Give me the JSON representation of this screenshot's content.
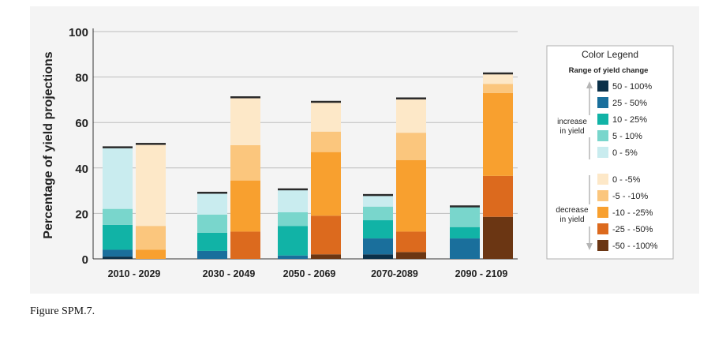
{
  "caption": "Figure SPM.7.",
  "chart_data": {
    "type": "bar",
    "stacked": true,
    "categories": [
      "2010 - 2029",
      "2030 - 2049",
      "2050 - 2069",
      "2070-2089",
      "2090 - 2109"
    ],
    "ylabel": "Percentage of yield projections",
    "xlabel": "",
    "ylim": [
      0,
      100
    ],
    "yticks": [
      "0",
      "20",
      "40",
      "60",
      "80",
      "100"
    ],
    "grid": true,
    "increase_series": [
      {
        "name": "50 - 100%",
        "color": "#0b3049",
        "values": [
          1,
          0,
          0,
          2,
          0
        ]
      },
      {
        "name": "25 - 50%",
        "color": "#1a6f9c",
        "values": [
          3,
          3.5,
          1.5,
          7,
          9
        ]
      },
      {
        "name": "10 - 25%",
        "color": "#11b3a6",
        "values": [
          11,
          8,
          13,
          8,
          5
        ]
      },
      {
        "name": "5 - 10%",
        "color": "#79d6cc",
        "values": [
          7,
          8,
          6,
          6,
          9
        ]
      },
      {
        "name": "0 - 5%",
        "color": "#c9ecef",
        "values": [
          27,
          9.5,
          10,
          5,
          0
        ]
      }
    ],
    "decrease_series": [
      {
        "name": "-50 - -100%",
        "color": "#6b3613",
        "values": [
          0,
          0,
          2,
          3,
          18.5
        ]
      },
      {
        "name": "-25 - -50%",
        "color": "#dc6a1e",
        "values": [
          0,
          12,
          17,
          9,
          18
        ]
      },
      {
        "name": "-10 - -25%",
        "color": "#f8a02f",
        "values": [
          4,
          22.5,
          28,
          31.5,
          36.5
        ]
      },
      {
        "name": "-5 - -10%",
        "color": "#fbc67d",
        "values": [
          10.5,
          15.5,
          9,
          12,
          4
        ]
      },
      {
        "name": "0 - -5%",
        "color": "#fde8c8",
        "values": [
          36,
          21,
          13,
          15,
          4.5
        ]
      }
    ],
    "legend": {
      "title": "Color Legend",
      "subtitle": "Range of yield change",
      "increase_label": [
        "increase",
        "in yield"
      ],
      "decrease_label": [
        "decrease",
        "in yield"
      ],
      "placement": "right"
    }
  }
}
